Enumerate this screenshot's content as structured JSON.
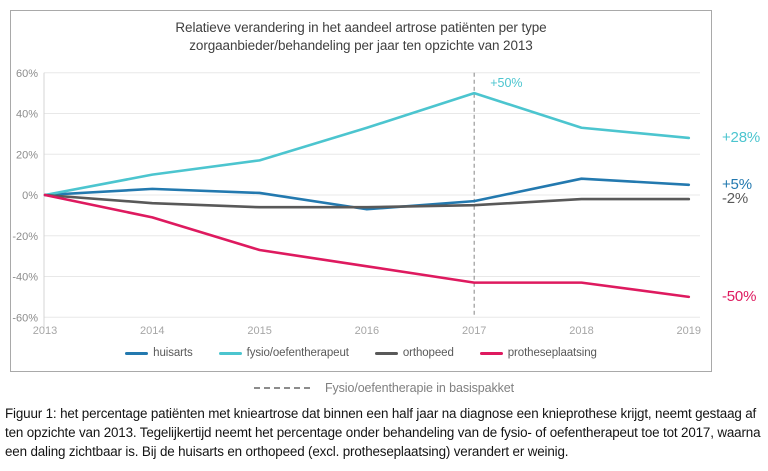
{
  "title": {
    "line1": "Relatieve verandering in het aandeel artrose patiënten per type",
    "line2": "zorgaanbieder/behandeling  per jaar ten opzichte van 2013"
  },
  "chart_data": {
    "type": "line",
    "title": "Relatieve verandering in het aandeel artrose patiënten per type zorgaanbieder/behandeling per jaar ten opzichte van 2013",
    "categories": [
      "2013",
      "2014",
      "2015",
      "2016",
      "2017",
      "2018",
      "2019"
    ],
    "series": [
      {
        "name": "huisarts",
        "color": "#2379af",
        "values": [
          0,
          3,
          1,
          -7,
          -3,
          8,
          5
        ]
      },
      {
        "name": "fysio/oefentherapeut",
        "color": "#4cc5cf",
        "values": [
          0,
          10,
          17,
          33,
          50,
          33,
          28
        ]
      },
      {
        "name": "orthopeed",
        "color": "#595959",
        "values": [
          0,
          -4,
          -6,
          -6,
          -5,
          -2,
          -2
        ]
      },
      {
        "name": "protheseplaatsing",
        "color": "#de1a5f",
        "values": [
          0,
          -11,
          -27,
          -35,
          -43,
          -43,
          -50
        ]
      }
    ],
    "ylim": [
      -60,
      60
    ],
    "yticks": [
      {
        "label": "60%",
        "value": 60
      },
      {
        "label": "40%",
        "value": 40
      },
      {
        "label": "20%",
        "value": 20
      },
      {
        "label": "0%",
        "value": 0
      },
      {
        "label": "-20%",
        "value": -20
      },
      {
        "label": "-40%",
        "value": -40
      },
      {
        "label": "-60%",
        "value": -60
      }
    ],
    "grid": "horizontal",
    "legend_position": "bottom-inside",
    "reference_line": {
      "x": "2017",
      "style": "dashed",
      "color": "#999999"
    },
    "peak_annotation": {
      "text": "+50%",
      "x": "2017",
      "value": 50,
      "color": "#4cc5cf"
    },
    "end_labels": [
      {
        "text": "+28%",
        "value": 28,
        "color": "#4cc5cf"
      },
      {
        "text": "+5%",
        "value": 5,
        "color": "#2379af"
      },
      {
        "text": "-2%",
        "value": -2,
        "color": "#595959"
      },
      {
        "text": "-50%",
        "value": -50,
        "color": "#de1a5f"
      }
    ]
  },
  "footnote_legend": {
    "label": "Fysio/oefentherapie  in basispakket"
  },
  "caption": "Figuur 1: het percentage patiënten met knieartrose dat binnen een half jaar na diagnose een knieprothese krijgt, neemt gestaag af ten opzichte van 2013. Tegelijkertijd neemt het percentage onder behandeling van de fysio- of oefentherapeut toe tot 2017, waarna een daling zichtbaar is. Bij de huisarts en orthopeed (excl. protheseplaatsing) verandert er weinig."
}
